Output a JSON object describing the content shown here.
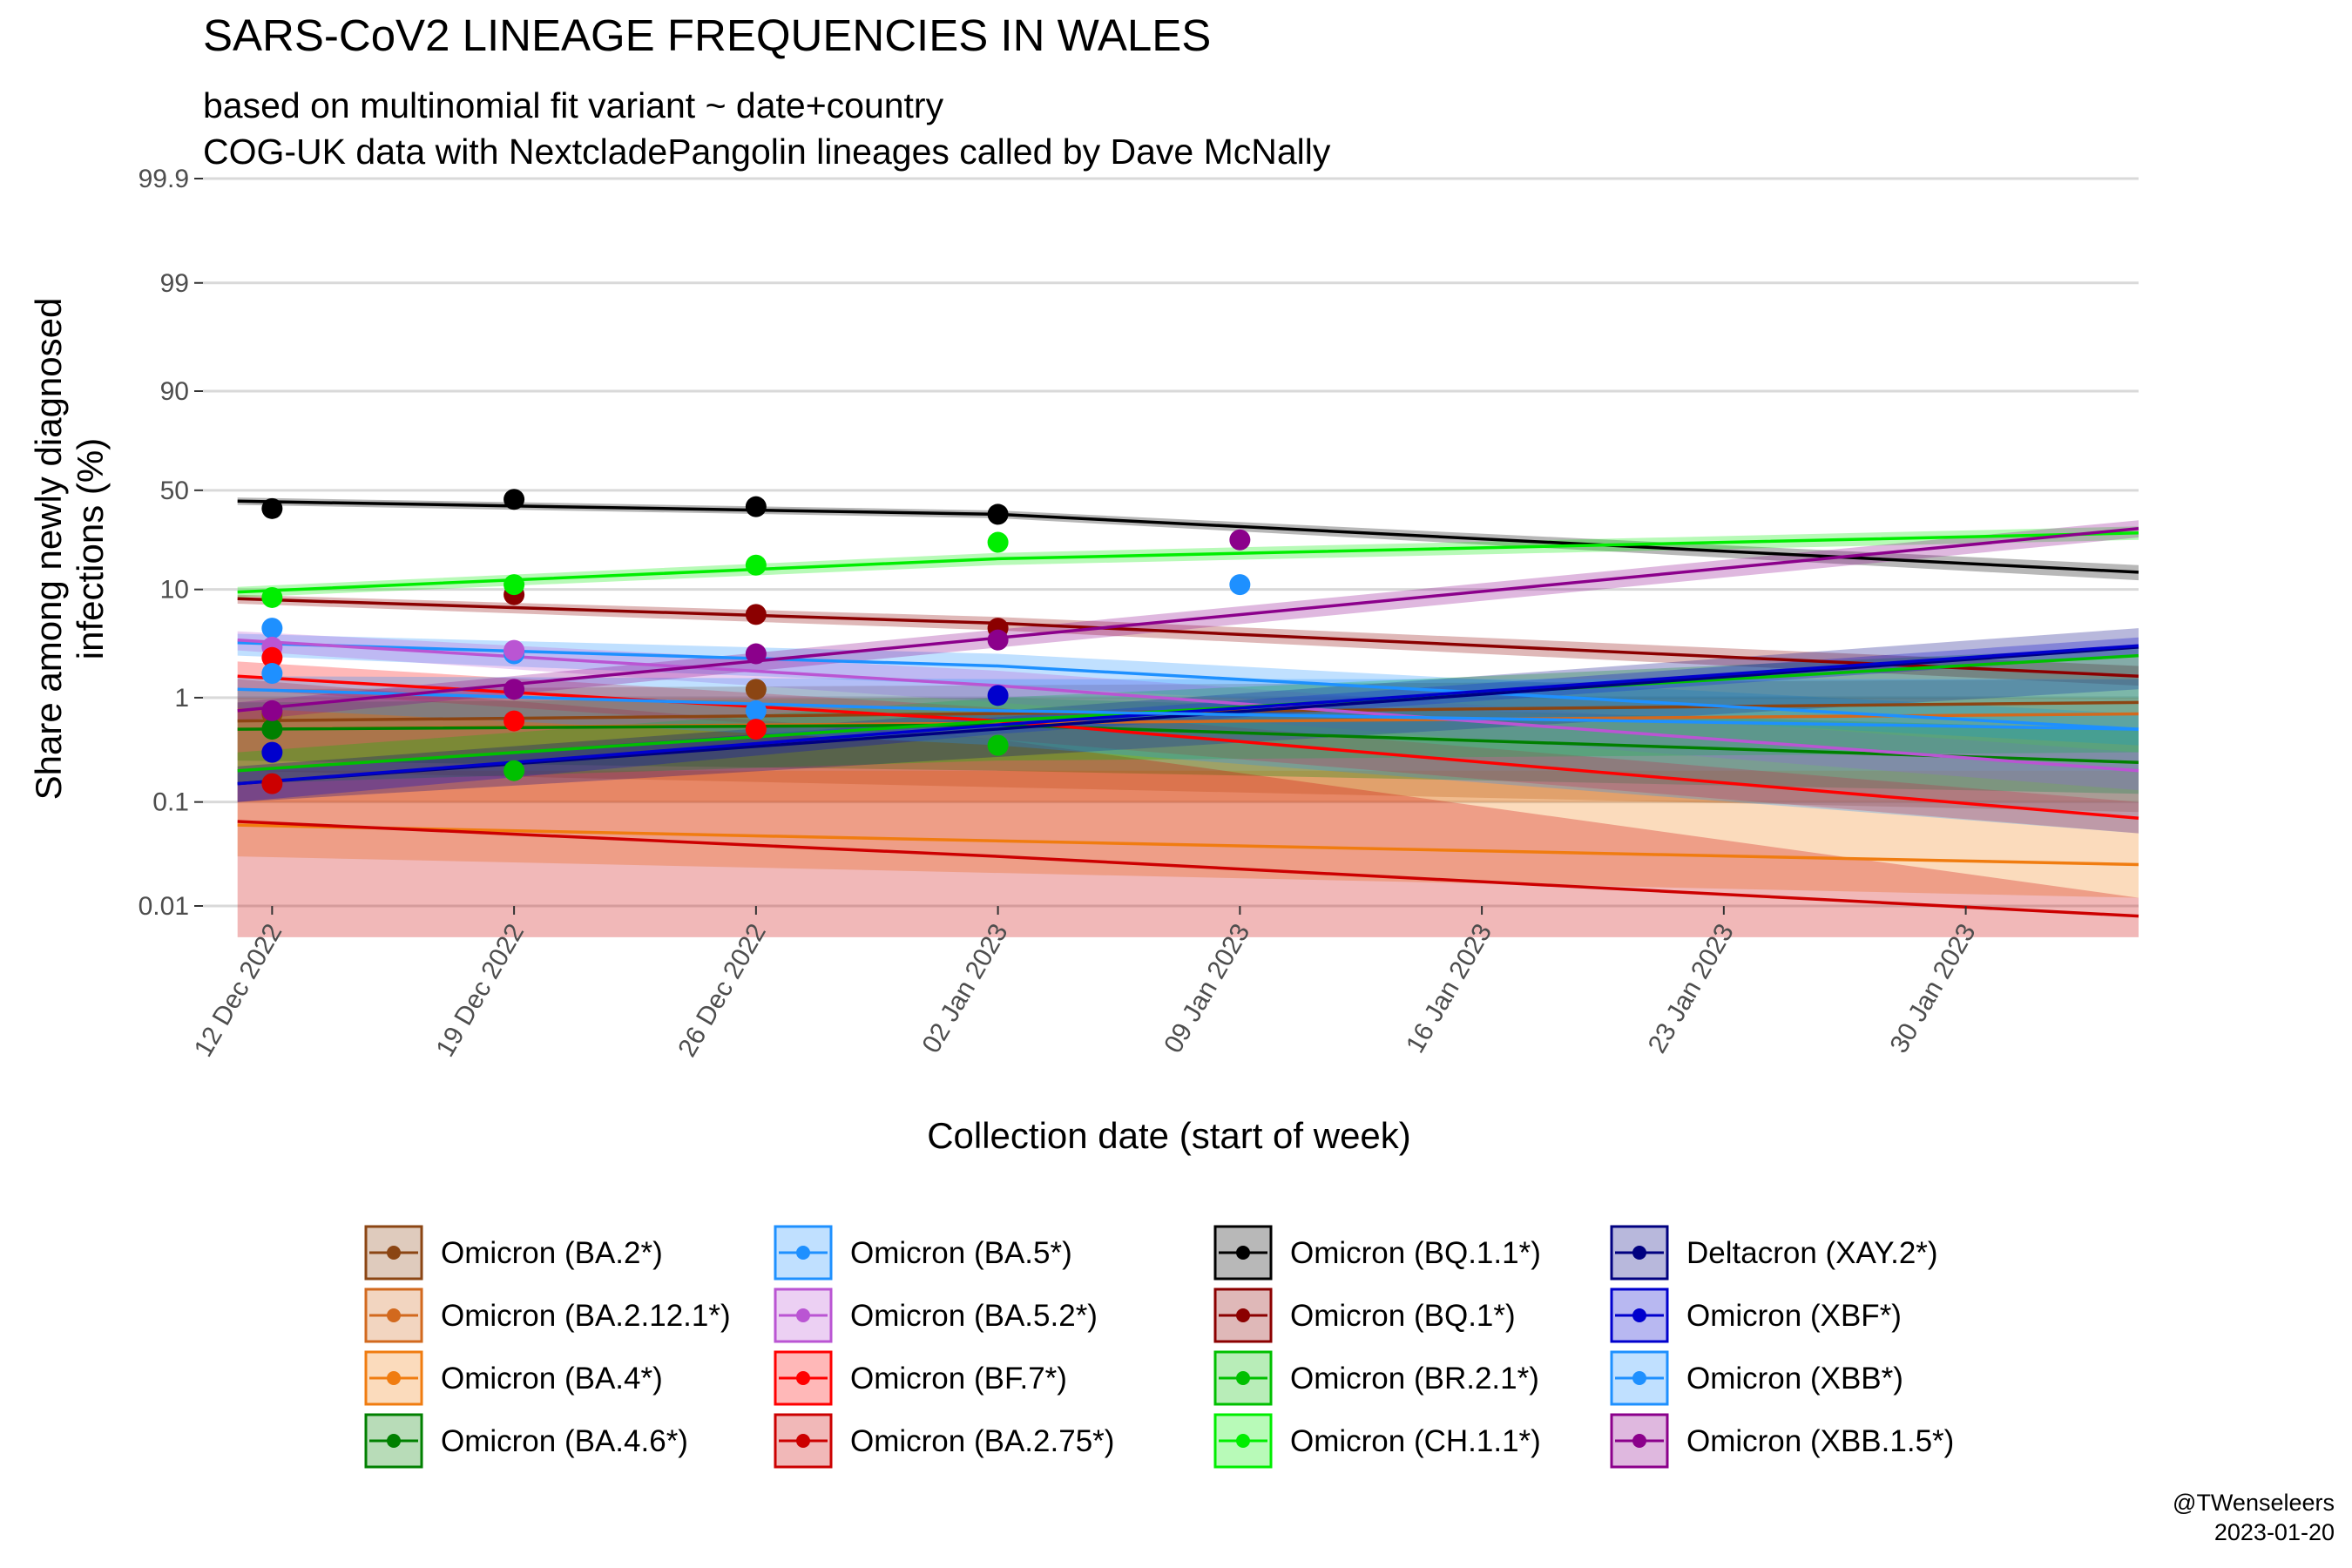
{
  "chart_data": {
    "type": "line",
    "title": "SARS-CoV2 LINEAGE FREQUENCIES IN WALES",
    "subtitle_lines": [
      "based on multinomial fit variant ~ date+country",
      "COG-UK data with NextcladePangolin lineages called by Dave McNally"
    ],
    "xlabel": "Collection date (start of week)",
    "ylabel_lines": [
      "Share among newly diagnosed",
      "infections (%)"
    ],
    "y_scale": "logit",
    "y_ticks": [
      0.01,
      0.1,
      1,
      10,
      50,
      90,
      99,
      99.9
    ],
    "y_tick_labels": [
      "0.01",
      "0.1",
      "1",
      "10",
      "50",
      "90",
      "99",
      "99.9"
    ],
    "xlim": [
      "2022-12-10",
      "2023-02-04"
    ],
    "ylim": [
      0.01,
      99.9
    ],
    "x_ticks": [
      "2022-12-12",
      "2022-12-19",
      "2022-12-26",
      "2023-01-02",
      "2023-01-09",
      "2023-01-16",
      "2023-01-23",
      "2023-01-30"
    ],
    "x_tick_labels": [
      "12 Dec 2022",
      "19 Dec 2022",
      "26 Dec 2022",
      "02 Jan 2023",
      "09 Jan 2023",
      "16 Jan 2023",
      "23 Jan 2023",
      "30 Jan 2023"
    ],
    "grid": "horizontal",
    "legend_position": "bottom",
    "series": [
      {
        "name": "Omicron (BA.2*)",
        "color": "#8B4513",
        "fit_x": [
          "2022-12-11",
          "2023-02-04"
        ],
        "fit_y": [
          0.6,
          0.9
        ],
        "ci_low": [
          0.2,
          0.08
        ],
        "ci_high": [
          1.2,
          1.5
        ],
        "points": [
          {
            "x": "2022-12-12",
            "y": 0.7
          },
          {
            "x": "2022-12-26",
            "y": 1.2
          }
        ]
      },
      {
        "name": "Omicron (BA.2.12.1*)",
        "color": "#D2691E",
        "fit_x": [
          "2022-12-11",
          "2023-02-04"
        ],
        "fit_y": [
          0.5,
          0.7
        ],
        "ci_low": [
          0.1,
          0.1
        ],
        "ci_high": [
          1,
          1
        ],
        "points": []
      },
      {
        "name": "Omicron (BA.4*)",
        "color": "#F07C10",
        "fit_x": [
          "2022-12-11",
          "2023-02-04"
        ],
        "fit_y": [
          0.06,
          0.025
        ],
        "ci_low": [
          0.03,
          0.012
        ],
        "ci_high": [
          0.2,
          0.2
        ],
        "points": []
      },
      {
        "name": "Omicron (BA.4.6*)",
        "color": "#008000",
        "fit_x": [
          "2022-12-11",
          "2023-01-02",
          "2023-02-04"
        ],
        "fit_y": [
          0.5,
          0.55,
          0.24
        ],
        "ci_low": [
          0.25,
          0.2,
          0.12
        ],
        "ci_high": [
          0.9,
          1,
          0.5
        ],
        "points": [
          {
            "x": "2022-12-12",
            "y": 0.5
          }
        ]
      },
      {
        "name": "Omicron (BA.5*)",
        "color": "#1E90FF",
        "fit_x": [
          "2022-12-11",
          "2023-01-02",
          "2023-02-04"
        ],
        "fit_y": [
          3.3,
          2,
          0.5
        ],
        "ci_low": [
          2.5,
          1.3,
          0.35
        ],
        "ci_high": [
          4,
          2.6,
          0.7
        ],
        "points": [
          {
            "x": "2022-12-12",
            "y": 4.5
          },
          {
            "x": "2022-12-19",
            "y": 2.6
          },
          {
            "x": "2022-12-26",
            "y": 0.75
          }
        ]
      },
      {
        "name": "Omicron (BA.5.2*)",
        "color": "#BA55D3",
        "fit_x": [
          "2022-12-11",
          "2023-01-02",
          "2023-02-04"
        ],
        "fit_y": [
          3.5,
          1.3,
          0.2
        ],
        "ci_low": [
          2.8,
          0.9,
          0.13
        ],
        "ci_high": [
          4.2,
          1.8,
          0.3
        ],
        "points": [
          {
            "x": "2022-12-12",
            "y": 3
          },
          {
            "x": "2022-12-19",
            "y": 2.8
          }
        ]
      },
      {
        "name": "Omicron (BF.7*)",
        "color": "#FF0000",
        "fit_x": [
          "2022-12-11",
          "2023-01-02",
          "2023-02-04"
        ],
        "fit_y": [
          1.6,
          0.6,
          0.07
        ],
        "ci_low": [
          1.2,
          0.4,
          0.05
        ],
        "ci_high": [
          2.2,
          0.8,
          0.1
        ],
        "points": [
          {
            "x": "2022-12-12",
            "y": 2.4
          },
          {
            "x": "2022-12-19",
            "y": 0.6
          },
          {
            "x": "2022-12-26",
            "y": 0.5
          }
        ]
      },
      {
        "name": "Omicron (BA.2.75*)",
        "color": "#CC0000",
        "fit_x": [
          "2022-12-11",
          "2023-01-02",
          "2023-02-04"
        ],
        "fit_y": [
          0.065,
          0.03,
          0.008
        ],
        "ci_low": [
          0.005,
          0.005,
          0.005
        ],
        "ci_high": [
          1.5,
          0.4,
          0.012
        ],
        "points": [
          {
            "x": "2022-12-12",
            "y": 0.15
          }
        ]
      },
      {
        "name": "Omicron (BQ.1.1*)",
        "color": "#000000",
        "fit_x": [
          "2022-12-11",
          "2023-01-02",
          "2023-02-04"
        ],
        "fit_y": [
          44,
          37,
          14
        ],
        "ci_low": [
          42,
          35,
          12
        ],
        "ci_high": [
          46,
          39,
          16
        ],
        "points": [
          {
            "x": "2022-12-12",
            "y": 40
          },
          {
            "x": "2022-12-19",
            "y": 45
          },
          {
            "x": "2022-12-26",
            "y": 41
          },
          {
            "x": "2023-01-02",
            "y": 37
          }
        ]
      },
      {
        "name": "Omicron (BQ.1*)",
        "color": "#8B0000",
        "fit_x": [
          "2022-12-11",
          "2023-01-02",
          "2023-02-04"
        ],
        "fit_y": [
          8.3,
          5,
          1.6
        ],
        "ci_low": [
          7.5,
          4.3,
          1.3
        ],
        "ci_high": [
          9,
          5.7,
          2
        ],
        "points": [
          {
            "x": "2022-12-19",
            "y": 9
          },
          {
            "x": "2022-12-26",
            "y": 6
          },
          {
            "x": "2023-01-02",
            "y": 4.5
          }
        ]
      },
      {
        "name": "Omicron (BR.2.1*)",
        "color": "#00C000",
        "fit_x": [
          "2022-12-11",
          "2023-01-02",
          "2023-02-04"
        ],
        "fit_y": [
          0.2,
          0.6,
          2.5
        ],
        "ci_low": [
          0.15,
          0.25,
          0.3
        ],
        "ci_high": [
          0.3,
          1,
          3
        ],
        "points": [
          {
            "x": "2022-12-19",
            "y": 0.2
          },
          {
            "x": "2023-01-02",
            "y": 0.35
          }
        ]
      },
      {
        "name": "Omicron (CH.1.1*)",
        "color": "#00EE00",
        "fit_x": [
          "2022-12-11",
          "2023-01-02",
          "2023-02-04"
        ],
        "fit_y": [
          9.5,
          18,
          28
        ],
        "ci_low": [
          8.5,
          16,
          25
        ],
        "ci_high": [
          10.5,
          20,
          31
        ],
        "points": [
          {
            "x": "2022-12-12",
            "y": 8.5
          },
          {
            "x": "2022-12-19",
            "y": 11
          },
          {
            "x": "2022-12-26",
            "y": 16
          },
          {
            "x": "2023-01-02",
            "y": 24
          }
        ]
      },
      {
        "name": "Deltacron (XAY.2*)",
        "color": "#000080",
        "fit_x": [
          "2022-12-11",
          "2023-02-04"
        ],
        "fit_y": [
          0.15,
          3
        ],
        "ci_low": [
          0.1,
          1.2
        ],
        "ci_high": [
          0.22,
          4.5
        ],
        "points": []
      },
      {
        "name": "Omicron (XBF*)",
        "color": "#0000CD",
        "fit_x": [
          "2022-12-11",
          "2023-01-02",
          "2023-02-04"
        ],
        "fit_y": [
          0.15,
          0.55,
          3.1
        ],
        "ci_low": [
          0.1,
          0.45,
          2.5
        ],
        "ci_high": [
          0.2,
          0.65,
          3.7
        ],
        "points": [
          {
            "x": "2022-12-12",
            "y": 0.3
          },
          {
            "x": "2023-01-02",
            "y": 1.05
          }
        ]
      },
      {
        "name": "Omicron (XBB*)",
        "color": "#1E90FF",
        "fit_x": [
          "2022-12-11",
          "2023-01-02",
          "2023-02-04"
        ],
        "fit_y": [
          1.2,
          0.75,
          0.5
        ],
        "ci_low": [
          0.8,
          0.35,
          0.05
        ],
        "ci_high": [
          1.6,
          1.5,
          1.5
        ],
        "points": [
          {
            "x": "2022-12-12",
            "y": 1.7
          },
          {
            "x": "2023-01-09",
            "y": 11
          }
        ]
      },
      {
        "name": "Omicron (XBB.1.5*)",
        "color": "#8B008B",
        "fit_x": [
          "2022-12-11",
          "2023-02-04"
        ],
        "fit_y": [
          0.75,
          30
        ],
        "ci_low": [
          0.6,
          26
        ],
        "ci_high": [
          0.9,
          34
        ],
        "points": [
          {
            "x": "2022-12-12",
            "y": 0.75
          },
          {
            "x": "2022-12-19",
            "y": 1.2
          },
          {
            "x": "2022-12-26",
            "y": 2.6
          },
          {
            "x": "2023-01-02",
            "y": 3.5
          },
          {
            "x": "2023-01-09",
            "y": 25
          }
        ]
      }
    ]
  },
  "caption": {
    "author": "@TWenseleers",
    "date": "2023-01-20"
  }
}
